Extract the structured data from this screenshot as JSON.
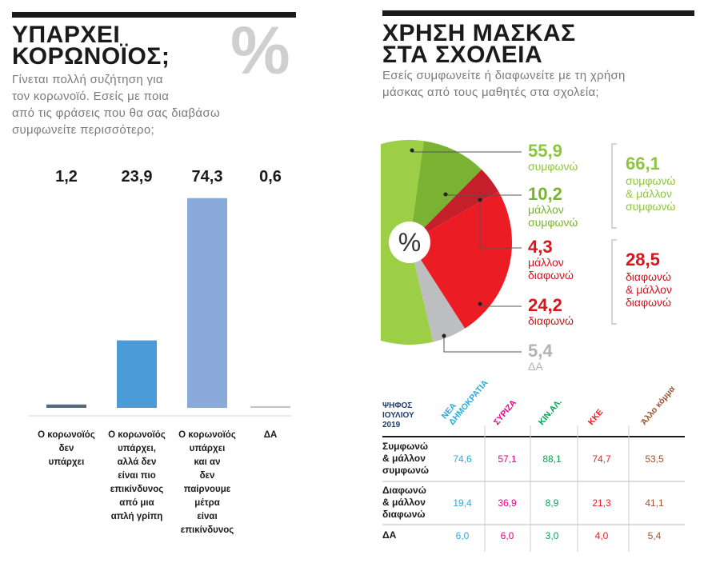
{
  "chart_data": [
    {
      "type": "bar",
      "title": "ΥΠΑΡΧΕΙ\nΚΟΡΩΝΟΪΟΣ;",
      "watermark": "%",
      "subtitle": "Γίνεται πολλή συζήτηση για\nτον κορωνοϊό. Εσείς με ποια\nαπό τις φράσεις που θα σας διαβάσω\nσυμφωνείτε περισσότερο;",
      "categories": [
        "Ο κορωνοϊός\nδεν\nυπάρχει",
        "Ο κορωνοϊός\nυπάρχει,\nαλλά δεν\nείναι πιο\nεπικίνδυνος\nαπό μια\nαπλή γρίπη",
        "Ο κορωνοϊός\nυπάρχει\nκαι αν\nδεν\nπαίρνουμε\nμέτρα\nείναι\nεπικίνδυνος",
        "ΔΑ"
      ],
      "values": [
        1.2,
        23.9,
        74.3,
        0.6
      ],
      "value_labels": [
        "1,2",
        "23,9",
        "74,3",
        "0,6"
      ],
      "colors": [
        "#55697f",
        "#4a9bd8",
        "#8aaad9",
        "#c4c4c4"
      ]
    },
    {
      "type": "pie",
      "title": "ΧΡΗΣΗ ΜΑΣΚΑΣ\nΣΤΑ ΣΧΟΛΕΙΑ",
      "subtitle": "Εσείς συμφωνείτε ή διαφωνείτε με τη χρήση\nμάσκας από τους μαθητές στα σχολεία;",
      "center_label": "%",
      "categories": [
        "συμφωνώ",
        "μάλλον\nσυμφωνώ",
        "μάλλον\nδιαφωνώ",
        "διαφωνώ",
        "ΔΑ"
      ],
      "values": [
        55.9,
        10.2,
        4.3,
        24.2,
        5.4
      ],
      "value_labels": [
        "55,9",
        "10,2",
        "4,3",
        "24,2",
        "5,4"
      ],
      "colors": [
        "#9dcf46",
        "#7ab331",
        "#c41f2a",
        "#ec1c24",
        "#bcbec0"
      ],
      "label_colors": [
        "#8cc63f",
        "#7ab331",
        "#d8141d",
        "#d8141d",
        "#b3b3b3"
      ],
      "groups": {
        "labels": [
          "συμφωνώ\n& μάλλον\nσυμφωνώ",
          "διαφωνώ\n& μάλλον\nδιαφωνώ"
        ],
        "values": [
          66.1,
          28.5
        ],
        "value_labels": [
          "66,1",
          "28,5"
        ],
        "colors": [
          "#8cc63f",
          "#d8141d"
        ]
      }
    }
  ],
  "table": {
    "title": "ΨΗΦΟΣ\nΙΟΥΛΙΟΥ\n2019",
    "columns": [
      "ΝΕΑ\nΔΗΜΟΚΡΑΤΙΑ",
      "ΣΥΡΙΖΑ",
      "ΚΙΝ.ΑΛ.",
      "ΚΚΕ",
      "Άλλο κόμμα"
    ],
    "column_colors": [
      "#29abe2",
      "#ec008c",
      "#00a651",
      "#ed1c24",
      "#a0522d"
    ],
    "rows": [
      {
        "label": "Συμφωνώ\n& μάλλον\nσυμφωνώ",
        "cells": [
          "74,6",
          "57,1",
          "88,1",
          "74,7",
          "53,5"
        ]
      },
      {
        "label": "Διαφωνώ\n& μάλλον\nδιαφωνώ",
        "cells": [
          "19,4",
          "36,9",
          "8,9",
          "21,3",
          "41,1"
        ]
      },
      {
        "label": "ΔΑ",
        "cells": [
          "6,0",
          "6,0",
          "3,0",
          "4,0",
          "5,4"
        ]
      }
    ]
  }
}
